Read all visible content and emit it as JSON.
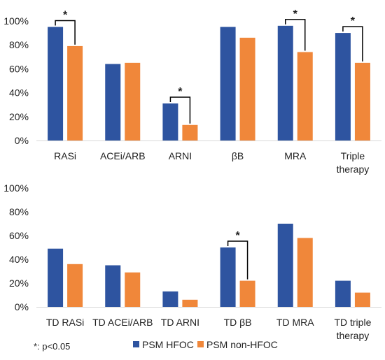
{
  "colors": {
    "PSM HFOC": "#2E54A0",
    "PSM non-HFOC": "#F0873A",
    "text": "#1f1f1f",
    "bracket": "#000000"
  },
  "legend": {
    "position": "bottom-right",
    "items": [
      "PSM HFOC",
      "PSM non-HFOC"
    ]
  },
  "footnote": "*: p<0.05",
  "chart_data": [
    {
      "type": "bar",
      "categories": [
        [
          "RASi"
        ],
        [
          "ACEi/ARB"
        ],
        [
          "ARNI"
        ],
        [
          "βB"
        ],
        [
          "MRA"
        ],
        [
          "Triple",
          "therapy"
        ]
      ],
      "series": [
        {
          "name": "PSM HFOC",
          "values": [
            95,
            64,
            31,
            95,
            96,
            90
          ]
        },
        {
          "name": "PSM non-HFOC",
          "values": [
            79,
            65,
            13,
            86,
            74,
            65
          ]
        }
      ],
      "ylim": [
        0,
        100
      ],
      "yticks": [
        "0%",
        "20%",
        "40%",
        "60%",
        "80%",
        "100%"
      ],
      "grid": false,
      "significant": [
        0,
        2,
        4,
        5
      ],
      "significance_label": "*"
    },
    {
      "type": "bar",
      "categories": [
        [
          "TD RASi"
        ],
        [
          "TD ACEi/ARB"
        ],
        [
          "TD ARNI"
        ],
        [
          "TD βB"
        ],
        [
          "TD MRA"
        ],
        [
          "TD triple",
          "therapy"
        ]
      ],
      "series": [
        {
          "name": "PSM HFOC",
          "values": [
            49,
            35,
            13,
            50,
            70,
            22
          ]
        },
        {
          "name": "PSM non-HFOC",
          "values": [
            36,
            29,
            6,
            22,
            58,
            12
          ]
        }
      ],
      "ylim": [
        0,
        100
      ],
      "yticks": [
        "0%",
        "20%",
        "40%",
        "60%",
        "80%",
        "100%"
      ],
      "grid": false,
      "significant": [
        3
      ],
      "significance_label": "*"
    }
  ]
}
